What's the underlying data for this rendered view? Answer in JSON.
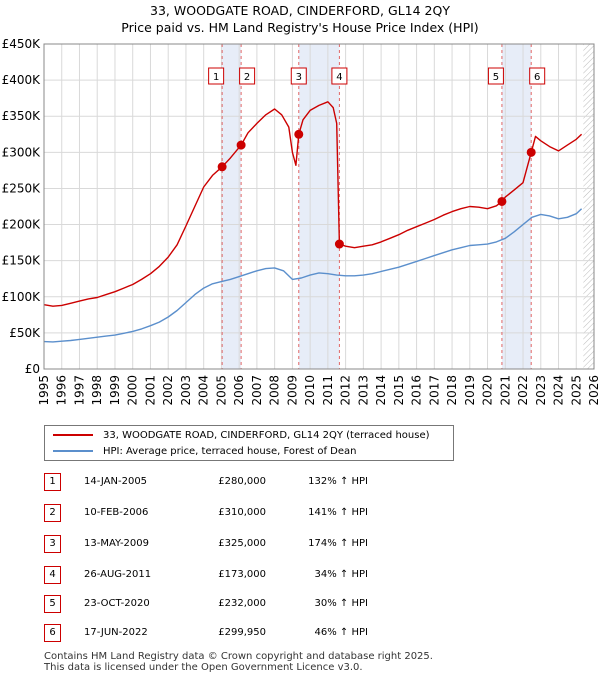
{
  "chart_data": {
    "type": "line",
    "title": "33, WOODGATE ROAD, CINDERFORD, GL14 2QY",
    "subtitle": "Price paid vs. HM Land Registry's House Price Index (HPI)",
    "xlabel": "",
    "ylabel": "",
    "xlim": [
      1995,
      2026
    ],
    "ylim": [
      0,
      450000
    ],
    "y_ticks": [
      0,
      50000,
      100000,
      150000,
      200000,
      250000,
      300000,
      350000,
      400000,
      450000
    ],
    "y_tick_labels": [
      "£0",
      "£50K",
      "£100K",
      "£150K",
      "£200K",
      "£250K",
      "£300K",
      "£350K",
      "£400K",
      "£450K"
    ],
    "x_ticks": [
      1995,
      1996,
      1997,
      1998,
      1999,
      2000,
      2001,
      2002,
      2003,
      2004,
      2005,
      2006,
      2007,
      2008,
      2009,
      2010,
      2011,
      2012,
      2013,
      2014,
      2015,
      2016,
      2017,
      2018,
      2019,
      2020,
      2021,
      2022,
      2023,
      2024,
      2025,
      2026
    ],
    "x_tick_labels": [
      "1995",
      "1996",
      "1997",
      "1998",
      "1999",
      "2000",
      "2001",
      "2002",
      "2003",
      "2004",
      "2005",
      "2006",
      "2007",
      "2008",
      "2009",
      "2010",
      "2011",
      "2012",
      "2013",
      "2014",
      "2015",
      "2016",
      "2017",
      "2018",
      "2019",
      "2020",
      "2021",
      "2022",
      "2023",
      "2024",
      "2025",
      "2026"
    ],
    "grid": true,
    "shaded_spans": [
      [
        2005.04,
        2006.11
      ],
      [
        2009.36,
        2011.65
      ],
      [
        2020.81,
        2022.46
      ]
    ],
    "hatched_future_from": 2025.4,
    "series": [
      {
        "name": "33, WOODGATE ROAD, CINDERFORD, GL14 2QY (terraced house)",
        "color": "#cc0000",
        "x": [
          1995.0,
          1995.5,
          1996.0,
          1996.5,
          1997.0,
          1997.5,
          1998.0,
          1998.5,
          1999.0,
          1999.5,
          2000.0,
          2000.5,
          2001.0,
          2001.5,
          2002.0,
          2002.5,
          2003.0,
          2003.5,
          2004.0,
          2004.5,
          2005.04,
          2005.5,
          2006.11,
          2006.5,
          2007.0,
          2007.5,
          2008.0,
          2008.4,
          2008.8,
          2009.0,
          2009.2,
          2009.36,
          2009.6,
          2010.0,
          2010.5,
          2011.0,
          2011.3,
          2011.5,
          2011.65,
          2012.0,
          2012.5,
          2013.0,
          2013.5,
          2014.0,
          2014.5,
          2015.0,
          2015.5,
          2016.0,
          2016.5,
          2017.0,
          2017.5,
          2018.0,
          2018.5,
          2019.0,
          2019.5,
          2020.0,
          2020.5,
          2020.81,
          2021.0,
          2021.5,
          2022.0,
          2022.46,
          2022.7,
          2023.0,
          2023.5,
          2024.0,
          2024.5,
          2025.0,
          2025.3
        ],
        "values": [
          89000,
          87000,
          88000,
          91000,
          94000,
          97000,
          99000,
          103000,
          107000,
          112000,
          117000,
          124000,
          132000,
          142000,
          155000,
          172000,
          198000,
          225000,
          252000,
          268000,
          280000,
          292000,
          310000,
          327000,
          340000,
          352000,
          360000,
          352000,
          335000,
          300000,
          282000,
          325000,
          345000,
          358000,
          365000,
          370000,
          362000,
          340000,
          173000,
          170000,
          168000,
          170000,
          172000,
          176000,
          181000,
          186000,
          192000,
          197000,
          202000,
          207000,
          213000,
          218000,
          222000,
          225000,
          224000,
          222000,
          226000,
          232000,
          238000,
          248000,
          258000,
          299950,
          322000,
          316000,
          308000,
          302000,
          310000,
          318000,
          325000
        ]
      },
      {
        "name": "HPI: Average price, terraced house, Forest of Dean",
        "color": "#5b8fcc",
        "x": [
          1995.0,
          1995.5,
          1996.0,
          1996.5,
          1997.0,
          1997.5,
          1998.0,
          1998.5,
          1999.0,
          1999.5,
          2000.0,
          2000.5,
          2001.0,
          2001.5,
          2002.0,
          2002.5,
          2003.0,
          2003.5,
          2004.0,
          2004.5,
          2005.0,
          2005.5,
          2006.0,
          2006.5,
          2007.0,
          2007.5,
          2008.0,
          2008.5,
          2009.0,
          2009.5,
          2010.0,
          2010.5,
          2011.0,
          2011.5,
          2012.0,
          2012.5,
          2013.0,
          2013.5,
          2014.0,
          2014.5,
          2015.0,
          2015.5,
          2016.0,
          2016.5,
          2017.0,
          2017.5,
          2018.0,
          2018.5,
          2019.0,
          2019.5,
          2020.0,
          2020.5,
          2021.0,
          2021.5,
          2022.0,
          2022.5,
          2023.0,
          2023.5,
          2024.0,
          2024.5,
          2025.0,
          2025.3
        ],
        "values": [
          38000,
          37500,
          38500,
          39500,
          41000,
          42500,
          44000,
          45500,
          47000,
          49500,
          52000,
          55500,
          60000,
          65000,
          72000,
          81000,
          92000,
          103000,
          112000,
          118000,
          121000,
          124000,
          128000,
          132000,
          136000,
          139000,
          140000,
          136000,
          124000,
          126000,
          130000,
          133000,
          132000,
          130000,
          129000,
          129000,
          130000,
          132000,
          135000,
          138000,
          141000,
          145000,
          149000,
          153000,
          157000,
          161000,
          165000,
          168000,
          171000,
          172000,
          173000,
          176000,
          181000,
          190000,
          200000,
          210000,
          214000,
          212000,
          208000,
          210000,
          215000,
          222000
        ]
      }
    ],
    "sales": [
      {
        "label": "1",
        "date": 2005.04,
        "price": 280000
      },
      {
        "label": "2",
        "date": 2006.11,
        "price": 310000
      },
      {
        "label": "3",
        "date": 2009.36,
        "price": 325000
      },
      {
        "label": "4",
        "date": 2011.65,
        "price": 173000
      },
      {
        "label": "5",
        "date": 2020.81,
        "price": 232000
      },
      {
        "label": "6",
        "date": 2022.46,
        "price": 299950
      }
    ]
  },
  "legend": {
    "property_label": "33, WOODGATE ROAD, CINDERFORD, GL14 2QY (terraced house)",
    "hpi_label": "HPI: Average price, terraced house, Forest of Dean"
  },
  "transactions": [
    {
      "num": "1",
      "date": "14-JAN-2005",
      "price": "£280,000",
      "hpi": "132% ↑ HPI"
    },
    {
      "num": "2",
      "date": "10-FEB-2006",
      "price": "£310,000",
      "hpi": "141% ↑ HPI"
    },
    {
      "num": "3",
      "date": "13-MAY-2009",
      "price": "£325,000",
      "hpi": "174% ↑ HPI"
    },
    {
      "num": "4",
      "date": "26-AUG-2011",
      "price": "£173,000",
      "hpi": "34% ↑ HPI"
    },
    {
      "num": "5",
      "date": "23-OCT-2020",
      "price": "£232,000",
      "hpi": "30% ↑ HPI"
    },
    {
      "num": "6",
      "date": "17-JUN-2022",
      "price": "£299,950",
      "hpi": "46% ↑ HPI"
    }
  ],
  "footer": {
    "line1": "Contains HM Land Registry data © Crown copyright and database right 2025.",
    "line2": "This data is licensed under the Open Government Licence v3.0."
  },
  "colors": {
    "property": "#cc0000",
    "hpi": "#5b8fcc",
    "shade": "#dde6f5",
    "grid": "#d9d9d9"
  }
}
